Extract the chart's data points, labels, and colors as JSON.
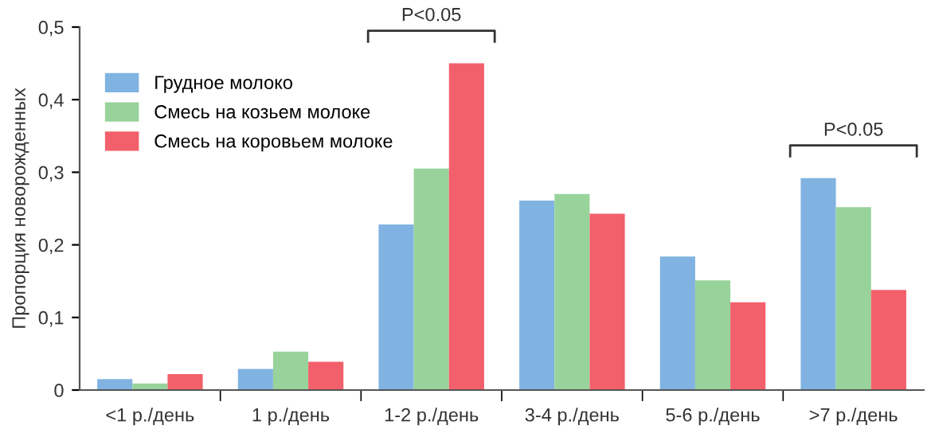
{
  "chart_data": {
    "type": "bar",
    "ylabel": "Пропорция новорожденных",
    "categories": [
      "<1 р./день",
      "1 р./день",
      "1-2 р./день",
      "3-4 р./день",
      "5-6 р./день",
      ">7 р./день"
    ],
    "series": [
      {
        "name": "Грудное молоко",
        "color": "#80b3e1",
        "values": [
          0.015,
          0.029,
          0.228,
          0.261,
          0.184,
          0.292
        ]
      },
      {
        "name": "Смесь на козьем молоке",
        "color": "#97d39a",
        "values": [
          0.009,
          0.053,
          0.305,
          0.27,
          0.151,
          0.252
        ]
      },
      {
        "name": "Смесь на коровьем молоке",
        "color": "#f2606b",
        "values": [
          0.022,
          0.039,
          0.45,
          0.243,
          0.121,
          0.138
        ]
      }
    ],
    "ylim": [
      0,
      0.5
    ],
    "yticks": [
      {
        "value": 0,
        "label": "0"
      },
      {
        "value": 0.1,
        "label": "0,1"
      },
      {
        "value": 0.2,
        "label": "0,2"
      },
      {
        "value": 0.3,
        "label": "0,3"
      },
      {
        "value": 0.4,
        "label": "0,4"
      },
      {
        "value": 0.5,
        "label": "0,5"
      }
    ],
    "grid": false,
    "legend": "top left",
    "annotations": [
      "P<0.05",
      "P<0.05"
    ]
  }
}
